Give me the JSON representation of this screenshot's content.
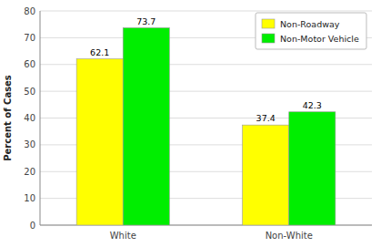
{
  "chart_data": {
    "type": "bar",
    "categories": [
      "White",
      "Non-White"
    ],
    "series": [
      {
        "name": "Non-Roadway",
        "color": "#FFFF00",
        "values": [
          62.1,
          37.4
        ]
      },
      {
        "name": "Non-Motor Vehicle",
        "color": "#00EE00",
        "values": [
          73.7,
          42.3
        ]
      }
    ],
    "ylabel": "Percent of Cases",
    "ylim": [
      0,
      80
    ],
    "yticks": [
      0,
      10,
      20,
      30,
      40,
      50,
      60,
      70,
      80
    ],
    "grid": true,
    "legend": "upper right",
    "data_labels": true
  }
}
